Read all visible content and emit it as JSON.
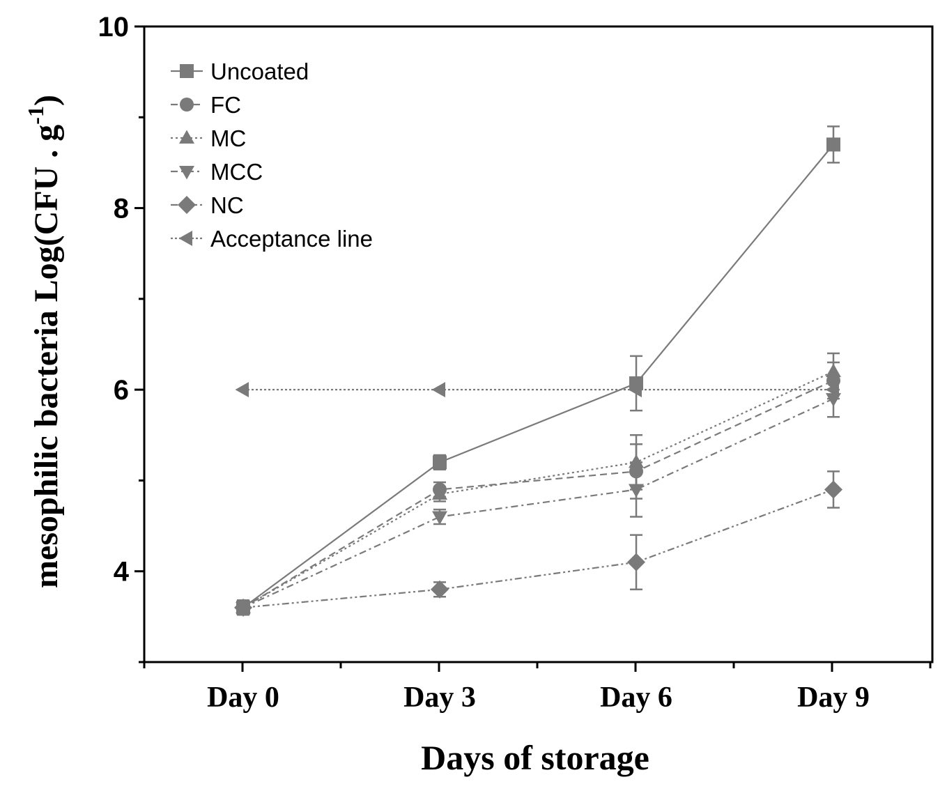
{
  "chart_data": {
    "type": "line",
    "title": "",
    "xlabel": "Days of storage",
    "ylabel_main": "mesophilic bacteria Log(CFU . g",
    "ylabel_sup": "-1",
    "ylabel_close": ")",
    "categories": [
      "Day 0",
      "Day 3",
      "Day 6",
      "Day 9"
    ],
    "ylim": [
      3,
      10
    ],
    "y_ticks": [
      "4",
      "6",
      "8",
      "10"
    ],
    "legend_position": "top-left",
    "series": [
      {
        "name": "Uncoated",
        "marker": "square",
        "dash": "solid",
        "values": [
          3.6,
          5.2,
          6.07,
          8.7
        ],
        "errors": [
          0.08,
          0.08,
          0.3,
          0.2
        ]
      },
      {
        "name": "FC",
        "marker": "circle",
        "dash": "dash",
        "values": [
          3.6,
          4.9,
          5.1,
          6.1
        ],
        "errors": [
          0.08,
          0.08,
          0.3,
          0.2
        ]
      },
      {
        "name": "MC",
        "marker": "triangle-up",
        "dash": "dot",
        "values": [
          3.6,
          4.85,
          5.2,
          6.2
        ],
        "errors": [
          0.08,
          0.08,
          0.3,
          0.2
        ]
      },
      {
        "name": "MCC",
        "marker": "triangle-down",
        "dash": "dashdot",
        "values": [
          3.6,
          4.6,
          4.9,
          5.9
        ],
        "errors": [
          0.08,
          0.08,
          0.3,
          0.2
        ]
      },
      {
        "name": "NC",
        "marker": "diamond",
        "dash": "dashdotdot",
        "values": [
          3.6,
          3.8,
          4.1,
          4.9
        ],
        "errors": [
          0.08,
          0.08,
          0.3,
          0.2
        ]
      },
      {
        "name": "Acceptance line",
        "marker": "triangle-left",
        "dash": "shortdot",
        "values": [
          6,
          6,
          6,
          6
        ],
        "errors": [
          0,
          0,
          0,
          0
        ]
      }
    ],
    "colors": {
      "series": "#7a7a7a",
      "axis": "#000000"
    }
  }
}
